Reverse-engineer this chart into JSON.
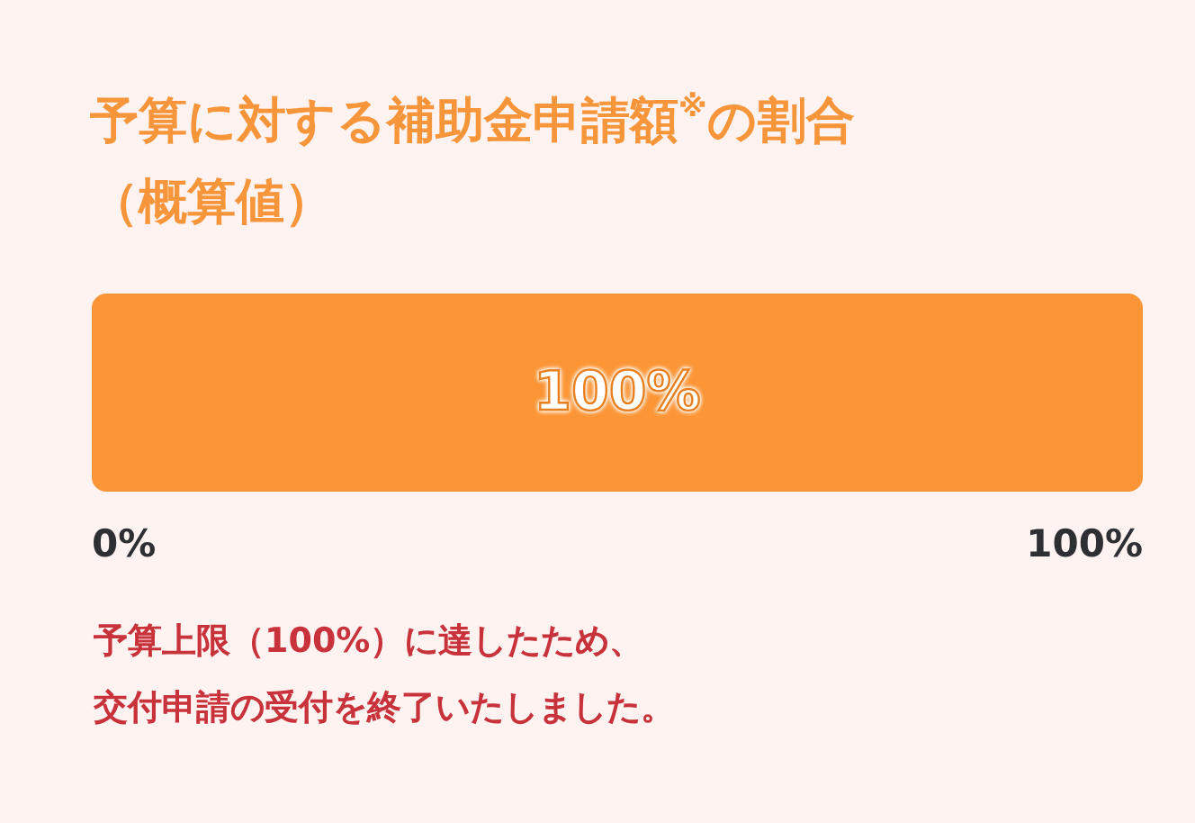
{
  "chart_data": {
    "type": "bar",
    "orientation": "horizontal",
    "title": "予算に対する補助金申請額$^{※}$の割合",
    "subtitle": "（概算値）",
    "categories": [
      null
    ],
    "values": [
      100
    ],
    "value_labels": [
      "100%"
    ],
    "color": "#fc9535",
    "xlim": [
      0,
      100
    ],
    "xticks": [
      {
        "value": 0,
        "label": "0%"
      },
      {
        "value": 100,
        "label": "100%"
      }
    ],
    "annotations": [
      "予算上限（100%）に達したため、",
      "交付申請の受付を終了いたしました。"
    ]
  }
}
